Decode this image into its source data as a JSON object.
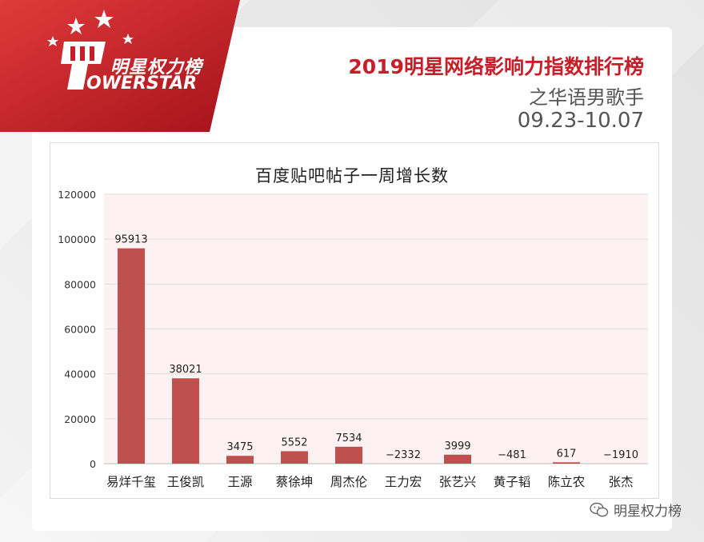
{
  "brand": {
    "logo_cn": "明星权力榜",
    "logo_en": "OWERSTAR",
    "colors": {
      "red": "#c81e2a",
      "bar": "#c0504d"
    }
  },
  "header": {
    "title": "2019明星网络影响力指数排行榜",
    "subtitle": "之华语男歌手",
    "date_range": "09.23-10.07"
  },
  "chart_data": {
    "type": "bar",
    "title": "百度贴吧帖子一周增长数",
    "categories": [
      "易烊千玺",
      "王俊凯",
      "王源",
      "蔡徐坤",
      "周杰伦",
      "王力宏",
      "张艺兴",
      "黄子韬",
      "陈立农",
      "张杰"
    ],
    "values": [
      95913,
      38021,
      3475,
      5552,
      7534,
      -2332,
      3999,
      -481,
      617,
      -1910
    ],
    "data_labels": [
      "95913",
      "38021",
      "3475",
      "5552",
      "7534",
      "−2332",
      "3999",
      "−481",
      "617",
      "−1910"
    ],
    "ylim": [
      0,
      120000
    ],
    "yticks": [
      "0",
      "20000",
      "40000",
      "60000",
      "80000",
      "100000",
      "120000"
    ],
    "grid": true,
    "xlabel": "",
    "ylabel": ""
  },
  "watermark": {
    "icon": "wechat-icon",
    "text": "明星权力榜"
  }
}
